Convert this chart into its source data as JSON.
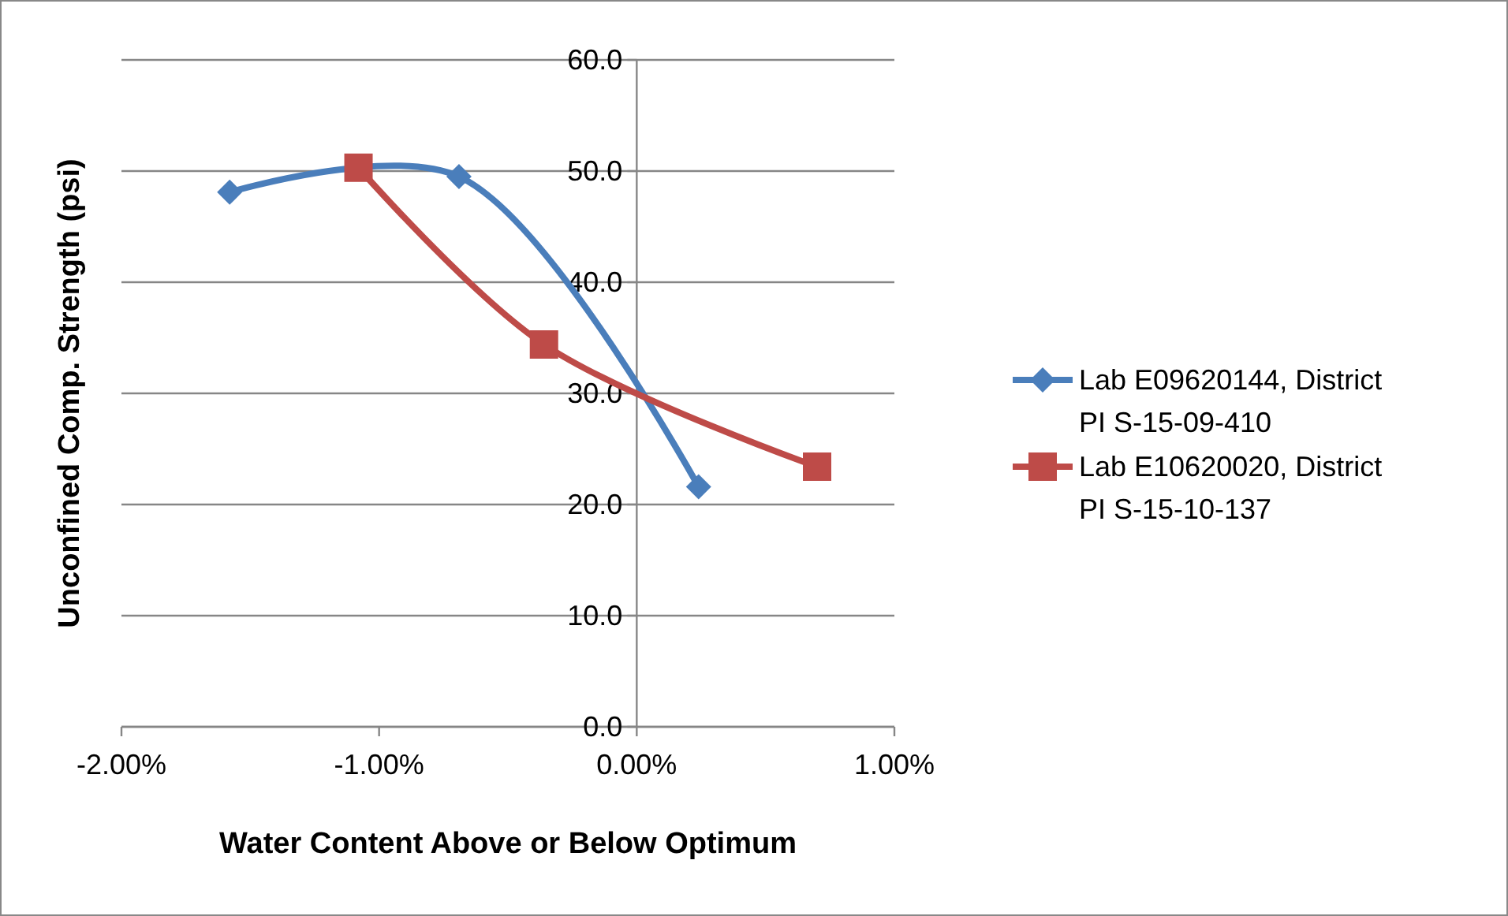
{
  "chart_data": {
    "type": "line",
    "xlabel": "Water Content Above or Below Optimum",
    "ylabel": "Unconfined Comp. Strength (psi)",
    "xlim": [
      -2,
      1
    ],
    "xticks": [
      {
        "value": -2,
        "label": "-2.00%"
      },
      {
        "value": -1,
        "label": "-1.00%"
      },
      {
        "value": 0,
        "label": "0.00%"
      },
      {
        "value": 1,
        "label": "1.00%"
      }
    ],
    "ylim": [
      0,
      60
    ],
    "yticks": [
      {
        "value": 0,
        "label": "0.0"
      },
      {
        "value": 10,
        "label": "10.0"
      },
      {
        "value": 20,
        "label": "20.0"
      },
      {
        "value": 30,
        "label": "30.0"
      },
      {
        "value": 40,
        "label": "40.0"
      },
      {
        "value": 50,
        "label": "50.0"
      },
      {
        "value": 60,
        "label": "60.0"
      }
    ],
    "grid": "y",
    "legend": "right",
    "line_style": "solid",
    "series": [
      {
        "name": "Lab E09620144, District PI S-15-09-410",
        "color": "#4a7ebb",
        "marker": "diamond",
        "x": [
          -1.58,
          -0.69,
          0.24
        ],
        "values": [
          48.1,
          49.5,
          21.6
        ]
      },
      {
        "name": "Lab E10620020, District PI S-15-10-137",
        "color": "#be4b48",
        "marker": "square",
        "x": [
          -1.08,
          -0.36,
          0.7
        ],
        "values": [
          50.3,
          34.4,
          23.4
        ]
      }
    ]
  }
}
